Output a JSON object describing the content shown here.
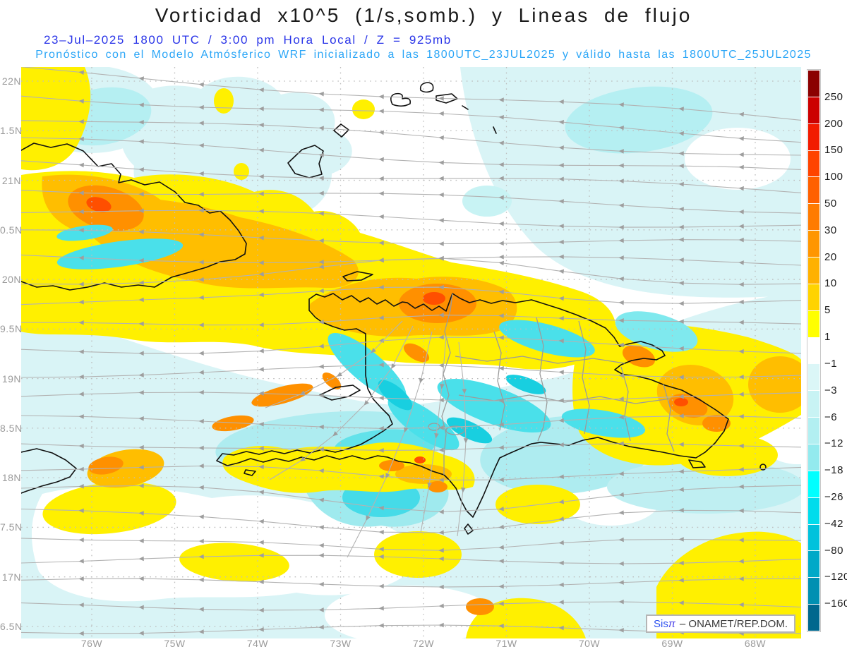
{
  "header": {
    "title": "Vorticidad x10^5 (1/s,somb.) y Lineas de flujo",
    "subtitle1": "23–Jul–2025   1800 UTC / 3:00 pm Hora Local / Z = 925mb",
    "subtitle2": "Pronóstico con el Modelo Atmósferico WRF inicializado a las 1800UTC_23JUL2025 y válido hasta las  1800UTC_25JUL2025"
  },
  "axes": {
    "lat_labels": [
      "22N",
      "1.5N",
      "21N",
      "0.5N",
      "20N",
      "9.5N",
      "19N",
      "8.5N",
      "18N",
      "7.5N",
      "17N",
      "6.5N"
    ],
    "lon_labels": [
      "76W",
      "75W",
      "74W",
      "73W",
      "72W",
      "71W",
      "70W",
      "69W",
      "68W"
    ]
  },
  "colorbar": {
    "tick_labels": [
      "250",
      "200",
      "150",
      "100",
      "50",
      "30",
      "20",
      "10",
      "5",
      "1",
      "−1",
      "−3",
      "−6",
      "−12",
      "−18",
      "−26",
      "−42",
      "−80",
      "−120",
      "−160"
    ],
    "colors": [
      "#8b0000",
      "#cc0000",
      "#f21b00",
      "#ff4400",
      "#ff6000",
      "#ff7b00",
      "#ff9600",
      "#ffb100",
      "#ffd300",
      "#ffff00",
      "#ffffff",
      "#dbf6f7",
      "#c8f3f4",
      "#b2eff1",
      "#93eaee",
      "#00ffff",
      "#00dcec",
      "#00c2dc",
      "#00a9c8",
      "#0090b2",
      "#00688e"
    ]
  },
  "attribution": {
    "brand": "Sis",
    "pi": "π",
    "rest": "– ONAMET/REP.DOM."
  },
  "palette": {
    "streamline": "#b3b3b3",
    "arrow": "#9e9e9e",
    "grid": "#bdbdbd",
    "coast": "#111111",
    "internal_border": "#9b9b9b",
    "axis_label": "#9a9a9a",
    "title": "#1a1a1a",
    "subtitle1": "#2a35e8",
    "subtitle2": "#2ba6f7",
    "sea_light_cyan": "#d9f4f6",
    "yellow": "#fff000",
    "amber": "#ffbe00",
    "orange": "#ff9000",
    "deep_orange": "#ff4f00",
    "vivid_cyan": "#4ae0ea"
  }
}
